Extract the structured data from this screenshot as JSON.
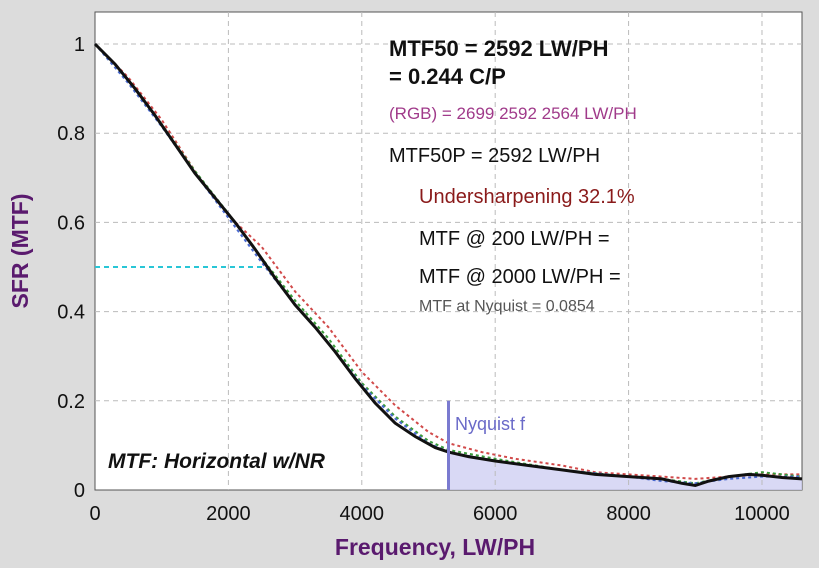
{
  "chart_data": {
    "type": "line",
    "xlabel": "Frequency, LW/PH",
    "ylabel": "SFR (MTF)",
    "xlim": [
      0,
      10600
    ],
    "ylim": [
      0,
      1.1
    ],
    "x_ticks": [
      "0",
      "2000",
      "4000",
      "6000",
      "8000",
      "10000"
    ],
    "y_ticks": [
      "0",
      "0.2",
      "0.4",
      "0.6",
      "0.8",
      "1"
    ],
    "grid": true,
    "annotations": {
      "mtf50_line1": "MTF50 = 2592 LW/PH",
      "mtf50_line2": "= 0.244 C/P",
      "rgb": "(RGB) = 2699  2592  2564 LW/PH",
      "mtf50p": "MTF50P = 2592 LW/PH",
      "undersharpening": "Undersharpening 32.1%",
      "mtf200": "MTF @ 200 LW/PH =",
      "mtf2000": "MTF @ 2000 LW/PH =",
      "nyquist_mtf": "MTF at Nyquist = 0.0854",
      "nyquist_label": "Nyquist f",
      "plot_caption": "MTF: Horizontal w/NR"
    },
    "nyquist_x": 5300,
    "mtf50_marker": {
      "y": 0.5,
      "x_end": 2550
    },
    "series": [
      {
        "color": "#111111",
        "style": "solid",
        "x": [
          0,
          300,
          600,
          900,
          1200,
          1500,
          1800,
          2100,
          2400,
          2700,
          3000,
          3300,
          3600,
          3900,
          4200,
          4500,
          4800,
          5100,
          5300,
          5600,
          6000,
          6500,
          7000,
          7500,
          8000,
          8500,
          8800,
          9000,
          9200,
          9500,
          9800,
          10000,
          10300,
          10600
        ],
        "y": [
          1.0,
          0.955,
          0.9,
          0.84,
          0.775,
          0.71,
          0.655,
          0.6,
          0.54,
          0.475,
          0.415,
          0.365,
          0.31,
          0.25,
          0.195,
          0.15,
          0.12,
          0.095,
          0.085,
          0.075,
          0.065,
          0.055,
          0.045,
          0.035,
          0.03,
          0.025,
          0.015,
          0.01,
          0.02,
          0.03,
          0.035,
          0.033,
          0.028,
          0.025
        ]
      },
      {
        "color": "#d14a4a",
        "style": "dotted",
        "x": [
          0,
          500,
          1000,
          1500,
          2000,
          2500,
          3000,
          3500,
          4000,
          4500,
          5000,
          5300,
          5800,
          6300,
          7000,
          7500,
          8000,
          8500,
          9000,
          9500,
          10000,
          10600
        ],
        "y": [
          1.0,
          0.925,
          0.83,
          0.715,
          0.615,
          0.545,
          0.445,
          0.365,
          0.265,
          0.19,
          0.13,
          0.105,
          0.085,
          0.07,
          0.055,
          0.04,
          0.035,
          0.03,
          0.025,
          0.03,
          0.035,
          0.035
        ]
      },
      {
        "color": "#3a9a3a",
        "style": "dotted",
        "x": [
          0,
          500,
          1000,
          1500,
          2000,
          2500,
          3000,
          3500,
          4000,
          4500,
          5000,
          5300,
          6000,
          7000,
          8000,
          8500,
          9000,
          9500,
          10000,
          10600
        ],
        "y": [
          1.0,
          0.915,
          0.82,
          0.715,
          0.62,
          0.52,
          0.425,
          0.34,
          0.24,
          0.165,
          0.11,
          0.09,
          0.07,
          0.045,
          0.03,
          0.025,
          0.015,
          0.03,
          0.04,
          0.03
        ]
      },
      {
        "color": "#4a6ad0",
        "style": "dotted",
        "x": [
          0,
          500,
          1000,
          1500,
          2000,
          2500,
          3000,
          3500,
          4000,
          4500,
          5000,
          5300,
          6000,
          7000,
          8000,
          8500,
          9000,
          9500,
          10000,
          10600
        ],
        "y": [
          1.0,
          0.912,
          0.815,
          0.71,
          0.61,
          0.51,
          0.415,
          0.33,
          0.235,
          0.16,
          0.105,
          0.085,
          0.065,
          0.045,
          0.03,
          0.02,
          0.015,
          0.025,
          0.03,
          0.03
        ]
      }
    ]
  }
}
